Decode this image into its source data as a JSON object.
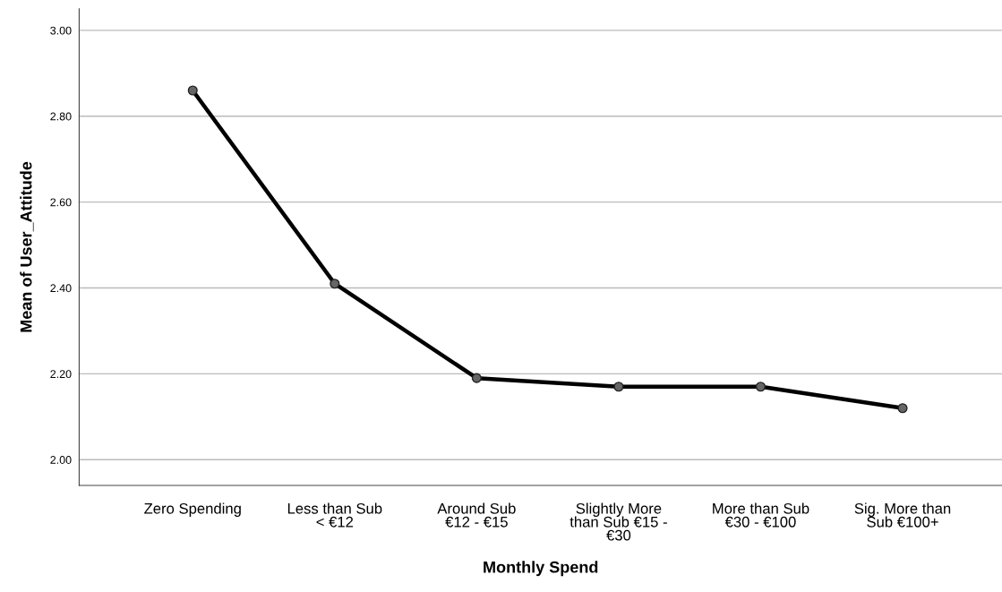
{
  "chart_data": {
    "type": "line",
    "xlabel": "Monthly Spend",
    "ylabel": "Mean of User_Attitude",
    "categories": [
      "Zero Spending",
      "Less than Sub\n< €12",
      "Around Sub\n€12 - €15",
      "Slightly More\nthan Sub €15 -\n€30",
      "More than Sub\n€30 - €100",
      "Sig. More than\nSub €100+"
    ],
    "series": [
      {
        "color": "#000000",
        "values": [
          2.86,
          2.41,
          2.19,
          2.17,
          2.17,
          2.12
        ]
      }
    ],
    "marker": "circle",
    "line_style": "solid",
    "ylim": [
      1.94,
      3.05
    ],
    "yticks": [
      {
        "value": 2,
        "label": "2.00"
      },
      {
        "value": 2.2,
        "label": "2.20"
      },
      {
        "value": 2.4,
        "label": "2.40"
      },
      {
        "value": 2.6,
        "label": "2.60"
      },
      {
        "value": 2.8,
        "label": "2.80"
      },
      {
        "value": 3,
        "label": "3.00"
      }
    ],
    "grid": "y"
  }
}
